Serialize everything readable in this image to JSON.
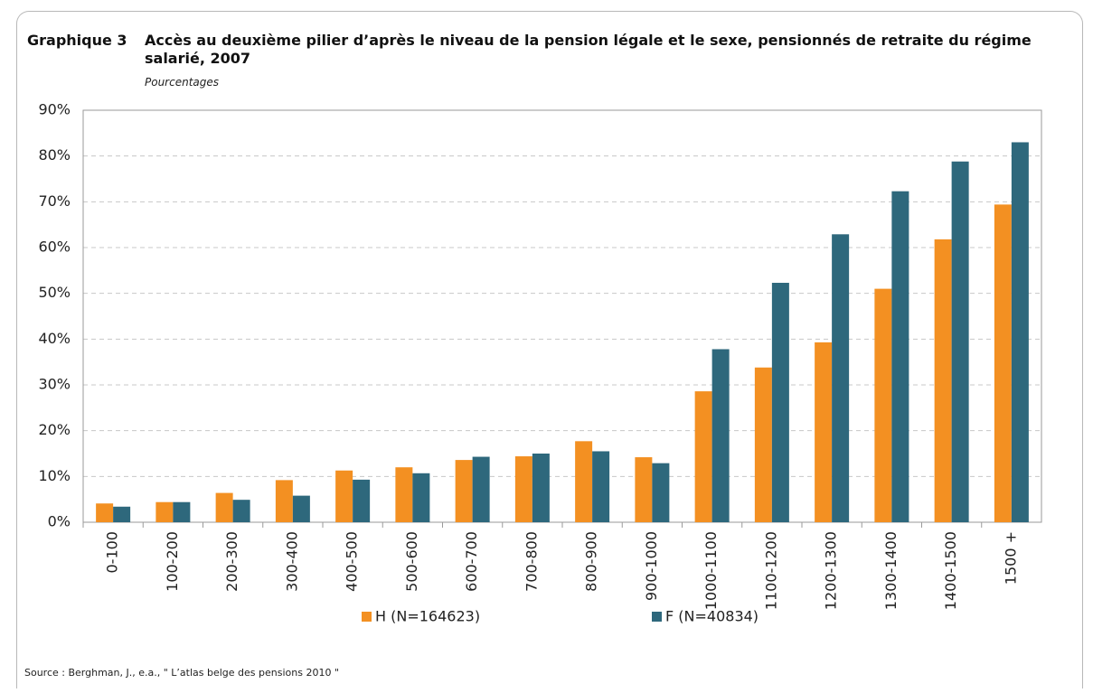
{
  "chart_data": {
    "type": "bar",
    "label": "Graphique 3",
    "title": "Accès au deuxième pilier d’après le niveau de la pension légale et le sexe, pensionnés de retraite du régime salarié, 2007",
    "subtitle": "Pourcentages",
    "source": "Source : Berghman, J., e.a., \" L’atlas belge des pensions 2010 \"",
    "categories": [
      "0-100",
      "100-200",
      "200-300",
      "300-400",
      "400-500",
      "500-600",
      "600-700",
      "700-800",
      "800-900",
      "900-1000",
      "1000-1100",
      "1100-1200",
      "1200-1300",
      "1300-1400",
      "1400-1500",
      "1500 +"
    ],
    "series": [
      {
        "name": "H (N=164623)",
        "color": "#f39022",
        "values": [
          4.1,
          4.4,
          6.4,
          9.2,
          11.3,
          12.0,
          13.6,
          14.4,
          17.7,
          14.2,
          28.6,
          33.8,
          39.3,
          51.0,
          61.8,
          69.4
        ]
      },
      {
        "name": "F (N=40834)",
        "color": "#2e687c",
        "values": [
          3.4,
          4.4,
          4.9,
          5.8,
          9.3,
          10.7,
          14.3,
          15.0,
          15.5,
          12.9,
          37.8,
          52.3,
          62.9,
          72.3,
          78.8,
          83.0
        ]
      }
    ],
    "ylim": [
      0,
      90
    ],
    "yticks": [
      {
        "value": 0,
        "label": "0%"
      },
      {
        "value": 10,
        "label": "10%"
      },
      {
        "value": 20,
        "label": "20%"
      },
      {
        "value": 30,
        "label": "30%"
      },
      {
        "value": 40,
        "label": "40%"
      },
      {
        "value": 50,
        "label": "50%"
      },
      {
        "value": 60,
        "label": "60%"
      },
      {
        "value": 70,
        "label": "70%"
      },
      {
        "value": 80,
        "label": "80%"
      },
      {
        "value": 90,
        "label": "90%"
      }
    ],
    "grid": true,
    "legend": "bottom"
  }
}
